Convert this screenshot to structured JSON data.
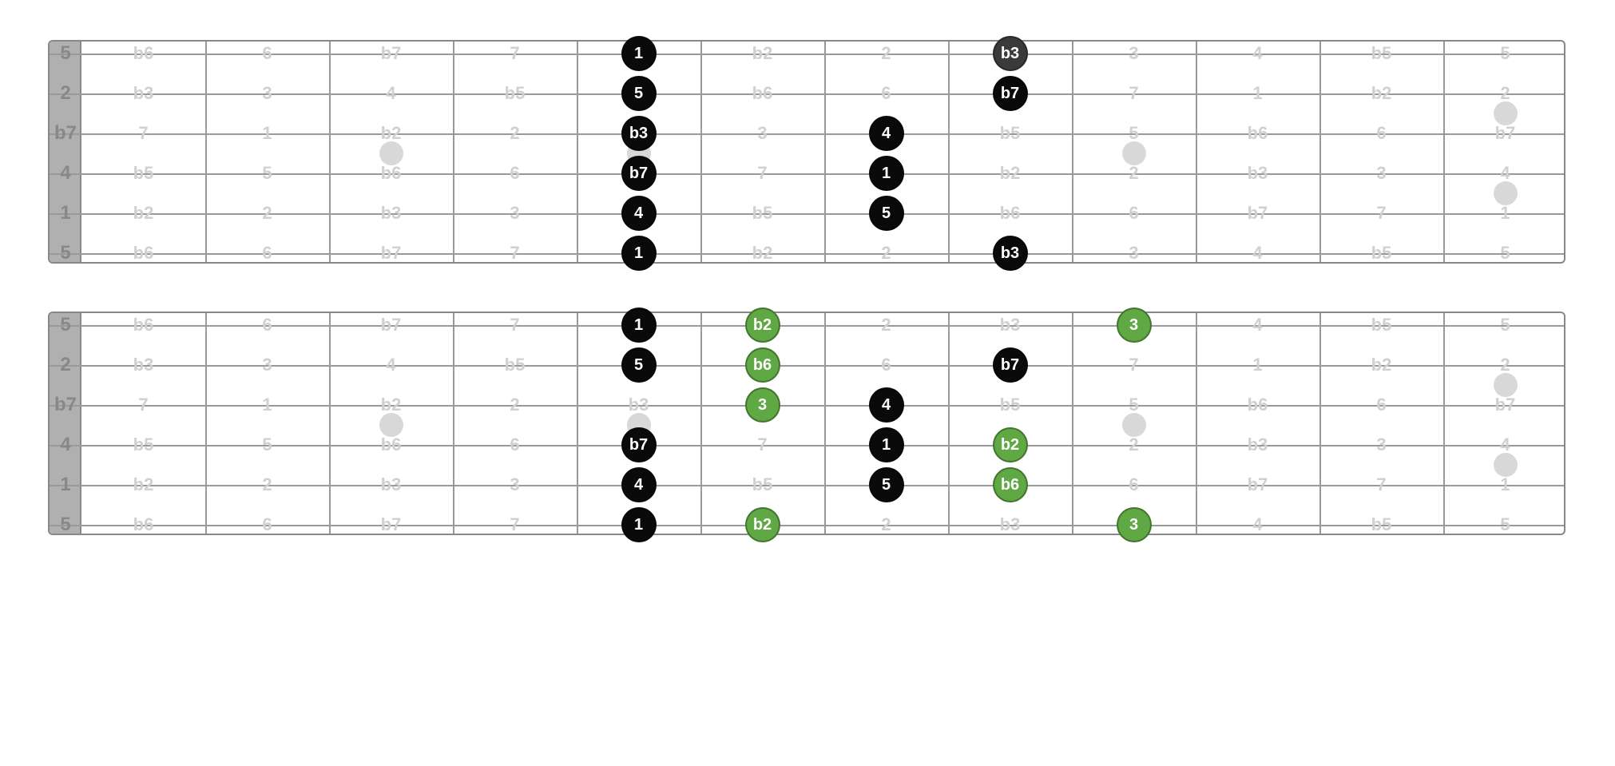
{
  "layout": {
    "fretboard_width": 1900,
    "fretboard_height": 280,
    "nut_width": 40,
    "num_frets": 12,
    "num_strings": 6,
    "string_spacing": 50,
    "top_margin": 15,
    "dot_diameter": 44,
    "inlay_diameter": 30,
    "open_label_fontsize": 24,
    "ghost_label_fontsize": 22,
    "dot_label_fontsize": 20,
    "gap_between": 60
  },
  "colors": {
    "background": "#ffffff",
    "border": "#888888",
    "nut": "#b0b0b0",
    "string": "#999999",
    "fret": "#999999",
    "inlay": "#d8d8d8",
    "open_label": "#888888",
    "ghost_label": "#d0d0d0",
    "dot_black": "#0a0a0a",
    "dot_darkgray": "#3a3a3a",
    "dot_green": "#5fa843",
    "dot_text": "#ffffff"
  },
  "open_labels": [
    "5",
    "2",
    "b7",
    "4",
    "1",
    "5"
  ],
  "inlays": [
    {
      "fret": 3,
      "between_strings": [
        2,
        3
      ]
    },
    {
      "fret": 5,
      "between_strings": [
        2,
        3
      ],
      "ghost": true
    },
    {
      "fret": 9,
      "between_strings": [
        2,
        3
      ]
    },
    {
      "fret": 12,
      "between_strings": [
        1,
        2
      ]
    },
    {
      "fret": 12,
      "between_strings": [
        3,
        4
      ]
    }
  ],
  "diagram1": {
    "ghost_grid": [
      [
        "b6",
        "6",
        "b7",
        "7",
        "",
        "b2",
        "2",
        "",
        "3",
        "4",
        "b5",
        "5"
      ],
      [
        "b3",
        "3",
        "4",
        "b5",
        "",
        "b6",
        "6",
        "",
        "7",
        "1",
        "b2",
        "2"
      ],
      [
        "7",
        "1",
        "b2",
        "2",
        "",
        "3",
        "",
        "b5",
        "5",
        "b6",
        "6",
        "b7"
      ],
      [
        "b5",
        "5",
        "b6",
        "6",
        "",
        "7",
        "",
        "b2",
        "2",
        "b3",
        "3",
        "4"
      ],
      [
        "b2",
        "2",
        "b3",
        "3",
        "",
        "b5",
        "",
        "b6",
        "6",
        "b7",
        "7",
        "1"
      ],
      [
        "b6",
        "6",
        "b7",
        "7",
        "",
        "b2",
        "2",
        "",
        "3",
        "4",
        "b5",
        "5"
      ]
    ],
    "notes": [
      {
        "string": 0,
        "fret": 5,
        "label": "1",
        "color": "black"
      },
      {
        "string": 0,
        "fret": 8,
        "label": "b3",
        "color": "darkgray"
      },
      {
        "string": 1,
        "fret": 5,
        "label": "5",
        "color": "black"
      },
      {
        "string": 1,
        "fret": 8,
        "label": "b7",
        "color": "black"
      },
      {
        "string": 2,
        "fret": 5,
        "label": "b3",
        "color": "black"
      },
      {
        "string": 2,
        "fret": 7,
        "label": "4",
        "color": "black"
      },
      {
        "string": 3,
        "fret": 5,
        "label": "b7",
        "color": "black"
      },
      {
        "string": 3,
        "fret": 7,
        "label": "1",
        "color": "black"
      },
      {
        "string": 4,
        "fret": 5,
        "label": "4",
        "color": "black"
      },
      {
        "string": 4,
        "fret": 7,
        "label": "5",
        "color": "black"
      },
      {
        "string": 5,
        "fret": 5,
        "label": "1",
        "color": "black"
      },
      {
        "string": 5,
        "fret": 8,
        "label": "b3",
        "color": "black"
      }
    ]
  },
  "diagram2": {
    "ghost_grid": [
      [
        "b6",
        "6",
        "b7",
        "7",
        "",
        "",
        "2",
        "b3",
        "",
        "4",
        "b5",
        "5"
      ],
      [
        "b3",
        "3",
        "4",
        "b5",
        "",
        "",
        "6",
        "",
        "7",
        "1",
        "b2",
        "2"
      ],
      [
        "7",
        "1",
        "b2",
        "2",
        "b3",
        "",
        "",
        "b5",
        "5",
        "b6",
        "6",
        "b7"
      ],
      [
        "b5",
        "5",
        "b6",
        "6",
        "",
        "7",
        "",
        "",
        "2",
        "b3",
        "3",
        "4"
      ],
      [
        "b2",
        "2",
        "b3",
        "3",
        "",
        "b5",
        "",
        "",
        "6",
        "b7",
        "7",
        "1"
      ],
      [
        "b6",
        "6",
        "b7",
        "7",
        "",
        "",
        "2",
        "b3",
        "",
        "4",
        "b5",
        "5"
      ]
    ],
    "notes": [
      {
        "string": 0,
        "fret": 5,
        "label": "1",
        "color": "black"
      },
      {
        "string": 0,
        "fret": 6,
        "label": "b2",
        "color": "green"
      },
      {
        "string": 0,
        "fret": 9,
        "label": "3",
        "color": "green"
      },
      {
        "string": 1,
        "fret": 5,
        "label": "5",
        "color": "black"
      },
      {
        "string": 1,
        "fret": 6,
        "label": "b6",
        "color": "green"
      },
      {
        "string": 1,
        "fret": 8,
        "label": "b7",
        "color": "black"
      },
      {
        "string": 2,
        "fret": 6,
        "label": "3",
        "color": "green"
      },
      {
        "string": 2,
        "fret": 7,
        "label": "4",
        "color": "black"
      },
      {
        "string": 3,
        "fret": 5,
        "label": "b7",
        "color": "black"
      },
      {
        "string": 3,
        "fret": 7,
        "label": "1",
        "color": "black"
      },
      {
        "string": 3,
        "fret": 8,
        "label": "b2",
        "color": "green"
      },
      {
        "string": 4,
        "fret": 5,
        "label": "4",
        "color": "black"
      },
      {
        "string": 4,
        "fret": 7,
        "label": "5",
        "color": "black"
      },
      {
        "string": 4,
        "fret": 8,
        "label": "b6",
        "color": "green"
      },
      {
        "string": 5,
        "fret": 5,
        "label": "1",
        "color": "black"
      },
      {
        "string": 5,
        "fret": 6,
        "label": "b2",
        "color": "green"
      },
      {
        "string": 5,
        "fret": 9,
        "label": "3",
        "color": "green"
      }
    ]
  }
}
